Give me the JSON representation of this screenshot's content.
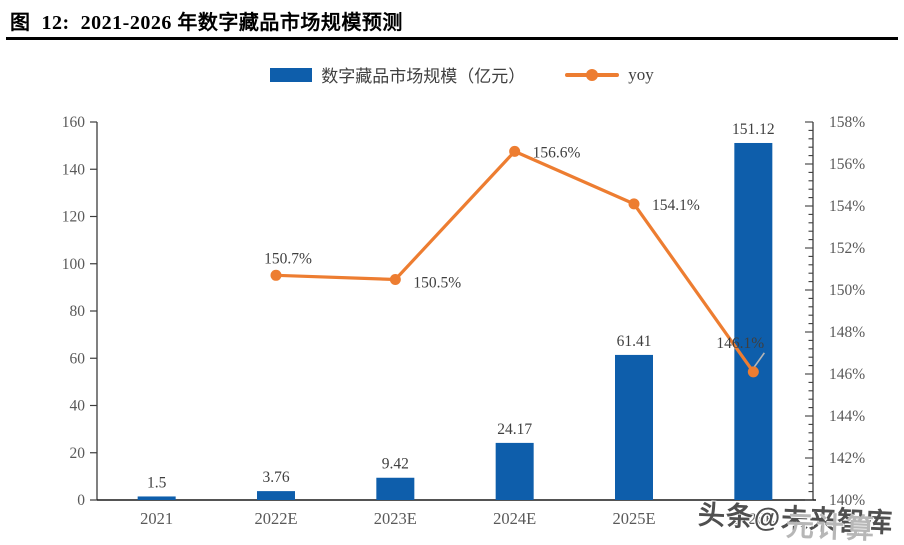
{
  "title": "图  12:  2021-2026 年数字藏品市场规模预测",
  "watermarks": [
    {
      "text": "头条@未来智库"
    },
    {
      "text": "元计算"
    }
  ],
  "colors": {
    "bar": "#0E5EAB",
    "line": "#ED7D31",
    "axis_text": "#595959",
    "label_text": "#3F3F3F",
    "axis_line": "#3d3d3d",
    "leader_line": "#b5b5b5",
    "title_rule": "#000000"
  },
  "chart_data": {
    "type": "bar+line",
    "title": "2021-2026 年数字藏品市场规模预测",
    "categories": [
      "2021",
      "2022E",
      "2023E",
      "2024E",
      "2025E",
      "2026E"
    ],
    "series": [
      {
        "name": "数字藏品市场规模（亿元）",
        "type": "bar",
        "axis": "left",
        "values": [
          1.5,
          3.76,
          9.42,
          24.17,
          61.41,
          151.12
        ],
        "labels": [
          "1.5",
          "3.76",
          "9.42",
          "24.17",
          "61.41",
          "151.12"
        ]
      },
      {
        "name": "yoy",
        "type": "line",
        "axis": "right",
        "values": [
          null,
          150.7,
          150.5,
          156.6,
          154.1,
          146.1
        ],
        "labels": [
          null,
          "150.7%",
          "150.5%",
          "156.6%",
          "154.1%",
          "146.1%"
        ]
      }
    ],
    "left_axis": {
      "min": 0,
      "max": 160,
      "step": 20,
      "tick_labels": [
        "0",
        "20",
        "40",
        "60",
        "80",
        "100",
        "120",
        "140",
        "160"
      ]
    },
    "right_axis": {
      "min": 140,
      "max": 158,
      "step": 2,
      "minor_step": 0.4,
      "tick_labels": [
        "140%",
        "142%",
        "144%",
        "146%",
        "148%",
        "150%",
        "152%",
        "154%",
        "156%",
        "158%"
      ]
    },
    "grid": false,
    "legend_position": "top"
  }
}
